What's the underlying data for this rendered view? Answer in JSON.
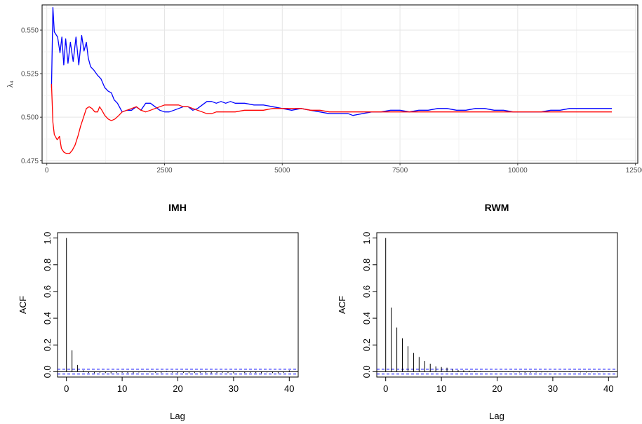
{
  "chart_data": [
    {
      "type": "line",
      "title": "",
      "xlabel": "",
      "ylabel": "λ₄",
      "xlim": [
        -100,
        12550
      ],
      "ylim": [
        0.4735,
        0.5645
      ],
      "x_ticks": [
        "0",
        "2500",
        "5000",
        "7500",
        "10000",
        "12500"
      ],
      "y_ticks": [
        "0.475",
        "0.500",
        "0.525",
        "0.550"
      ],
      "grid": true,
      "series": [
        {
          "color": "#0000ff",
          "points": [
            [
              100,
              0.517
            ],
            [
              130,
              0.563
            ],
            [
              160,
              0.549
            ],
            [
              230,
              0.546
            ],
            [
              280,
              0.537
            ],
            [
              320,
              0.546
            ],
            [
              360,
              0.53
            ],
            [
              400,
              0.545
            ],
            [
              450,
              0.531
            ],
            [
              500,
              0.543
            ],
            [
              560,
              0.532
            ],
            [
              620,
              0.546
            ],
            [
              680,
              0.53
            ],
            [
              740,
              0.547
            ],
            [
              790,
              0.538
            ],
            [
              840,
              0.543
            ],
            [
              880,
              0.534
            ],
            [
              930,
              0.529
            ],
            [
              1000,
              0.527
            ],
            [
              1080,
              0.524
            ],
            [
              1150,
              0.522
            ],
            [
              1230,
              0.517
            ],
            [
              1300,
              0.515
            ],
            [
              1370,
              0.514
            ],
            [
              1430,
              0.51
            ],
            [
              1500,
              0.508
            ],
            [
              1600,
              0.503
            ],
            [
              1700,
              0.504
            ],
            [
              1800,
              0.504
            ],
            [
              1900,
              0.506
            ],
            [
              2000,
              0.504
            ],
            [
              2100,
              0.508
            ],
            [
              2200,
              0.508
            ],
            [
              2300,
              0.506
            ],
            [
              2400,
              0.504
            ],
            [
              2500,
              0.503
            ],
            [
              2600,
              0.503
            ],
            [
              2700,
              0.504
            ],
            [
              2800,
              0.505
            ],
            [
              2900,
              0.506
            ],
            [
              3000,
              0.506
            ],
            [
              3100,
              0.504
            ],
            [
              3200,
              0.505
            ],
            [
              3300,
              0.507
            ],
            [
              3400,
              0.509
            ],
            [
              3500,
              0.509
            ],
            [
              3600,
              0.508
            ],
            [
              3700,
              0.509
            ],
            [
              3800,
              0.508
            ],
            [
              3900,
              0.509
            ],
            [
              4000,
              0.508
            ],
            [
              4200,
              0.508
            ],
            [
              4400,
              0.507
            ],
            [
              4600,
              0.507
            ],
            [
              4800,
              0.506
            ],
            [
              5000,
              0.505
            ],
            [
              5200,
              0.504
            ],
            [
              5400,
              0.505
            ],
            [
              5600,
              0.504
            ],
            [
              5800,
              0.503
            ],
            [
              6000,
              0.502
            ],
            [
              6200,
              0.502
            ],
            [
              6400,
              0.502
            ],
            [
              6500,
              0.501
            ],
            [
              6700,
              0.502
            ],
            [
              6900,
              0.503
            ],
            [
              7100,
              0.503
            ],
            [
              7300,
              0.504
            ],
            [
              7500,
              0.504
            ],
            [
              7700,
              0.503
            ],
            [
              7900,
              0.504
            ],
            [
              8100,
              0.504
            ],
            [
              8300,
              0.505
            ],
            [
              8500,
              0.505
            ],
            [
              8700,
              0.504
            ],
            [
              8900,
              0.504
            ],
            [
              9100,
              0.505
            ],
            [
              9300,
              0.505
            ],
            [
              9500,
              0.504
            ],
            [
              9700,
              0.504
            ],
            [
              9900,
              0.503
            ],
            [
              10100,
              0.503
            ],
            [
              10300,
              0.503
            ],
            [
              10500,
              0.503
            ],
            [
              10700,
              0.504
            ],
            [
              10900,
              0.504
            ],
            [
              11100,
              0.505
            ],
            [
              11300,
              0.505
            ],
            [
              11500,
              0.505
            ],
            [
              11700,
              0.505
            ],
            [
              11900,
              0.505
            ],
            [
              12000,
              0.505
            ]
          ]
        },
        {
          "color": "#ff0000",
          "points": [
            [
              100,
              0.519
            ],
            [
              130,
              0.497
            ],
            [
              160,
              0.49
            ],
            [
              220,
              0.487
            ],
            [
              270,
              0.489
            ],
            [
              310,
              0.482
            ],
            [
              360,
              0.48
            ],
            [
              420,
              0.479
            ],
            [
              480,
              0.479
            ],
            [
              540,
              0.481
            ],
            [
              600,
              0.484
            ],
            [
              660,
              0.489
            ],
            [
              720,
              0.495
            ],
            [
              780,
              0.5
            ],
            [
              840,
              0.505
            ],
            [
              900,
              0.506
            ],
            [
              960,
              0.505
            ],
            [
              1020,
              0.503
            ],
            [
              1080,
              0.503
            ],
            [
              1120,
              0.506
            ],
            [
              1170,
              0.504
            ],
            [
              1230,
              0.501
            ],
            [
              1300,
              0.499
            ],
            [
              1370,
              0.498
            ],
            [
              1450,
              0.499
            ],
            [
              1530,
              0.501
            ],
            [
              1600,
              0.503
            ],
            [
              1700,
              0.504
            ],
            [
              1800,
              0.505
            ],
            [
              1900,
              0.506
            ],
            [
              2000,
              0.504
            ],
            [
              2100,
              0.503
            ],
            [
              2200,
              0.504
            ],
            [
              2300,
              0.505
            ],
            [
              2400,
              0.506
            ],
            [
              2500,
              0.507
            ],
            [
              2600,
              0.507
            ],
            [
              2700,
              0.507
            ],
            [
              2800,
              0.507
            ],
            [
              2900,
              0.506
            ],
            [
              3000,
              0.506
            ],
            [
              3100,
              0.505
            ],
            [
              3200,
              0.504
            ],
            [
              3300,
              0.503
            ],
            [
              3400,
              0.502
            ],
            [
              3500,
              0.502
            ],
            [
              3600,
              0.503
            ],
            [
              3700,
              0.503
            ],
            [
              3800,
              0.503
            ],
            [
              3900,
              0.503
            ],
            [
              4000,
              0.503
            ],
            [
              4200,
              0.504
            ],
            [
              4400,
              0.504
            ],
            [
              4600,
              0.504
            ],
            [
              4800,
              0.505
            ],
            [
              5000,
              0.505
            ],
            [
              5200,
              0.505
            ],
            [
              5400,
              0.505
            ],
            [
              5600,
              0.504
            ],
            [
              5800,
              0.504
            ],
            [
              6000,
              0.503
            ],
            [
              6200,
              0.503
            ],
            [
              6400,
              0.503
            ],
            [
              6600,
              0.503
            ],
            [
              6800,
              0.503
            ],
            [
              7000,
              0.503
            ],
            [
              7200,
              0.503
            ],
            [
              7400,
              0.503
            ],
            [
              7600,
              0.503
            ],
            [
              7800,
              0.503
            ],
            [
              8000,
              0.503
            ],
            [
              8200,
              0.503
            ],
            [
              8400,
              0.503
            ],
            [
              8600,
              0.503
            ],
            [
              8800,
              0.503
            ],
            [
              9000,
              0.503
            ],
            [
              9200,
              0.503
            ],
            [
              9400,
              0.503
            ],
            [
              9600,
              0.503
            ],
            [
              9800,
              0.503
            ],
            [
              10000,
              0.503
            ],
            [
              10200,
              0.503
            ],
            [
              10400,
              0.503
            ],
            [
              10600,
              0.503
            ],
            [
              10800,
              0.503
            ],
            [
              11000,
              0.503
            ],
            [
              11200,
              0.503
            ],
            [
              11400,
              0.503
            ],
            [
              11600,
              0.503
            ],
            [
              11800,
              0.503
            ],
            [
              12000,
              0.503
            ]
          ]
        }
      ]
    },
    {
      "type": "bar",
      "title": "IMH",
      "xlabel": "Lag",
      "ylabel": "ACF",
      "xlim": [
        -1.6,
        41.6
      ],
      "ylim": [
        -0.04,
        1.04
      ],
      "x_ticks": [
        "0",
        "10",
        "20",
        "30",
        "40"
      ],
      "y_ticks": [
        "0.0",
        "0.2",
        "0.4",
        "0.6",
        "0.8",
        "1.0"
      ],
      "ci": 0.018,
      "lags": [
        0,
        1,
        2,
        3,
        4,
        5,
        6,
        7,
        8,
        9,
        10,
        11,
        12,
        13,
        14,
        15,
        16,
        17,
        18,
        19,
        20,
        21,
        22,
        23,
        24,
        25,
        26,
        27,
        28,
        29,
        30,
        31,
        32,
        33,
        34,
        35,
        36,
        37,
        38,
        39,
        40
      ],
      "values": [
        1.0,
        0.16,
        0.05,
        0.01,
        -0.01,
        -0.012,
        -0.008,
        -0.01,
        -0.012,
        -0.01,
        -0.008,
        -0.01,
        -0.012,
        -0.006,
        0.004,
        -0.005,
        -0.008,
        -0.01,
        0.005,
        -0.007,
        -0.01,
        -0.008,
        -0.012,
        -0.01,
        -0.008,
        -0.01,
        -0.012,
        -0.01,
        -0.008,
        -0.01,
        -0.012,
        0.004,
        -0.01,
        -0.008,
        -0.01,
        -0.012,
        -0.006,
        -0.01,
        -0.012,
        -0.008,
        0.01
      ]
    },
    {
      "type": "bar",
      "title": "RWM",
      "xlabel": "Lag",
      "ylabel": "ACF",
      "xlim": [
        -1.6,
        41.6
      ],
      "ylim": [
        -0.04,
        1.04
      ],
      "x_ticks": [
        "0",
        "10",
        "20",
        "30",
        "40"
      ],
      "y_ticks": [
        "0.0",
        "0.2",
        "0.4",
        "0.6",
        "0.8",
        "1.0"
      ],
      "ci": 0.018,
      "lags": [
        0,
        1,
        2,
        3,
        4,
        5,
        6,
        7,
        8,
        9,
        10,
        11,
        12,
        13,
        14,
        15,
        16,
        17,
        18,
        19,
        20,
        21,
        22,
        23,
        24,
        25,
        26,
        27,
        28,
        29,
        30,
        31,
        32,
        33,
        34,
        35,
        36,
        37,
        38,
        39,
        40
      ],
      "values": [
        1.0,
        0.48,
        0.33,
        0.25,
        0.19,
        0.14,
        0.11,
        0.08,
        0.06,
        0.04,
        0.035,
        0.03,
        0.02,
        0.012,
        0.01,
        0.008,
        0.006,
        0.004,
        0.002,
        0.002,
        0.001,
        -0.002,
        -0.003,
        -0.005,
        -0.006,
        -0.008,
        -0.007,
        -0.006,
        -0.005,
        -0.004,
        -0.003,
        -0.002,
        -0.002,
        -0.003,
        -0.004,
        -0.005,
        -0.006,
        -0.005,
        -0.004,
        -0.004,
        -0.003
      ]
    }
  ]
}
